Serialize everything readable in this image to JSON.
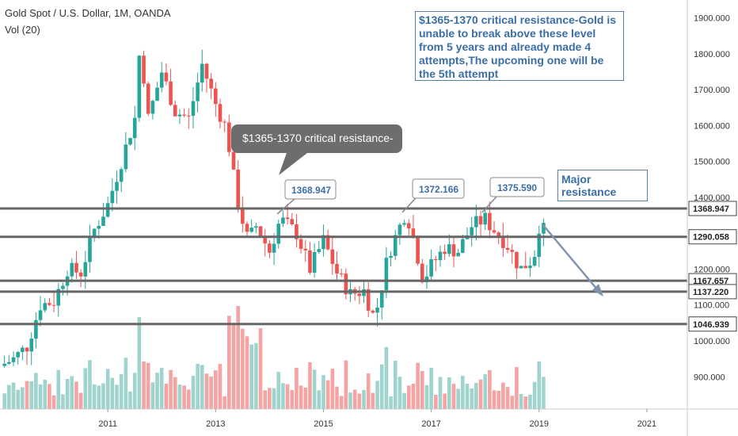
{
  "header": {
    "title": "Gold Spot / U.S. Dollar, 1M, OANDA",
    "volume_label": "Vol (20)"
  },
  "colors": {
    "up": "#26a69a",
    "down": "#ef5350",
    "vol_up": "#9fd3cd",
    "vol_down": "#f5a3a3",
    "level_line": "#666666",
    "axis_text": "#333333",
    "annotation_text": "#3a6ea5",
    "callout_bg": "#6d6d6d"
  },
  "chart_data": {
    "type": "candlestick",
    "title": "Gold Spot / U.S. Dollar, 1M, OANDA",
    "x_ticks": [
      "2011",
      "2013",
      "2015",
      "2017",
      "2019",
      "2021"
    ],
    "y_ticks": [
      900,
      1000,
      1100,
      1200,
      1300,
      1400,
      1500,
      1600,
      1700,
      1800,
      1900
    ],
    "y_tick_labels": [
      "900.000",
      "1000.000",
      "1100.000",
      "1200.000",
      "1300.000",
      "1400.000",
      "1500.000",
      "1600.000",
      "1700.000",
      "1800.000",
      "1900.000"
    ],
    "ylim": [
      810,
      1950
    ],
    "xlim": [
      2009.0,
      2021.75
    ],
    "price_levels": [
      {
        "value": 1368.947,
        "label": "1368.947"
      },
      {
        "value": 1290.058,
        "label": "1290.058"
      },
      {
        "value": 1167.657,
        "label": "1167.657"
      },
      {
        "value": 1137.22,
        "label": "1137.220"
      },
      {
        "value": 1046.939,
        "label": "1046.939"
      }
    ],
    "price_path": [
      [
        2009.0,
        930
      ],
      [
        2009.25,
        950
      ],
      [
        2009.5,
        985
      ],
      [
        2009.75,
        1100
      ],
      [
        2010.0,
        1110
      ],
      [
        2010.25,
        1200
      ],
      [
        2010.5,
        1190
      ],
      [
        2010.75,
        1310
      ],
      [
        2011.0,
        1380
      ],
      [
        2011.25,
        1500
      ],
      [
        2011.5,
        1620
      ],
      [
        2011.6,
        1830
      ],
      [
        2011.75,
        1620
      ],
      [
        2012.0,
        1750
      ],
      [
        2012.25,
        1640
      ],
      [
        2012.5,
        1620
      ],
      [
        2012.75,
        1770
      ],
      [
        2013.0,
        1660
      ],
      [
        2013.2,
        1590
      ],
      [
        2013.4,
        1390
      ],
      [
        2013.6,
        1280
      ],
      [
        2013.75,
        1320
      ],
      [
        2014.0,
        1250
      ],
      [
        2014.2,
        1340
      ],
      [
        2014.5,
        1300
      ],
      [
        2014.75,
        1200
      ],
      [
        2015.0,
        1280
      ],
      [
        2015.25,
        1190
      ],
      [
        2015.5,
        1130
      ],
      [
        2015.75,
        1140
      ],
      [
        2015.95,
        1060
      ],
      [
        2016.2,
        1240
      ],
      [
        2016.5,
        1350
      ],
      [
        2016.6,
        1330
      ],
      [
        2016.85,
        1170
      ],
      [
        2017.0,
        1210
      ],
      [
        2017.25,
        1260
      ],
      [
        2017.5,
        1250
      ],
      [
        2017.75,
        1320
      ],
      [
        2018.0,
        1340
      ],
      [
        2018.1,
        1320
      ],
      [
        2018.4,
        1270
      ],
      [
        2018.65,
        1200
      ],
      [
        2018.9,
        1230
      ],
      [
        2019.0,
        1320
      ],
      [
        2019.15,
        1300
      ]
    ],
    "callouts": [
      {
        "text": "$1365-1370 critical resistance-"
      },
      {
        "text": "1368.947"
      },
      {
        "text": "1372.166"
      },
      {
        "text": "1375.590"
      }
    ],
    "annotations": [
      {
        "text": "$1365-1370 critical resistance-Gold is unable to break above these level from 5 years and already made 4 attempts,The upcoming one will be the 5th attempt"
      },
      {
        "text": "Major resistance"
      }
    ]
  }
}
